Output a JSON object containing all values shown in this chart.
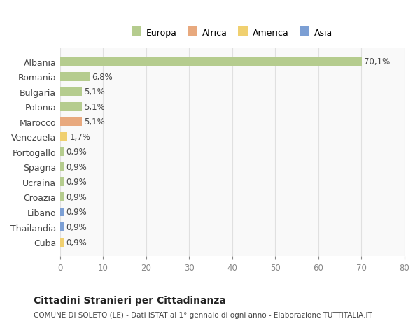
{
  "categories": [
    "Albania",
    "Romania",
    "Bulgaria",
    "Polonia",
    "Marocco",
    "Venezuela",
    "Portogallo",
    "Spagna",
    "Ucraina",
    "Croazia",
    "Libano",
    "Thailandia",
    "Cuba"
  ],
  "values": [
    70.1,
    6.8,
    5.1,
    5.1,
    5.1,
    1.7,
    0.9,
    0.9,
    0.9,
    0.9,
    0.9,
    0.9,
    0.9
  ],
  "labels": [
    "70,1%",
    "6,8%",
    "5,1%",
    "5,1%",
    "5,1%",
    "1,7%",
    "0,9%",
    "0,9%",
    "0,9%",
    "0,9%",
    "0,9%",
    "0,9%",
    "0,9%"
  ],
  "colors": [
    "#b5cc8e",
    "#b5cc8e",
    "#b5cc8e",
    "#b5cc8e",
    "#e8a97e",
    "#f0d070",
    "#b5cc8e",
    "#b5cc8e",
    "#b5cc8e",
    "#b5cc8e",
    "#7c9fd4",
    "#7c9fd4",
    "#f0d070"
  ],
  "continent": [
    "Europa",
    "Europa",
    "Europa",
    "Europa",
    "Africa",
    "America",
    "Europa",
    "Europa",
    "Europa",
    "Europa",
    "Asia",
    "Asia",
    "America"
  ],
  "legend_labels": [
    "Europa",
    "Africa",
    "America",
    "Asia"
  ],
  "legend_colors": [
    "#b5cc8e",
    "#e8a97e",
    "#f0d070",
    "#7c9fd4"
  ],
  "title": "Cittadini Stranieri per Cittadinanza",
  "subtitle": "COMUNE DI SOLETO (LE) - Dati ISTAT al 1° gennaio di ogni anno - Elaborazione TUTTITALIA.IT",
  "xlim": [
    0,
    80
  ],
  "xticks": [
    0,
    10,
    20,
    30,
    40,
    50,
    60,
    70,
    80
  ],
  "bg_color": "#ffffff",
  "plot_bg_color": "#f9f9f9",
  "grid_color": "#e0e0e0"
}
